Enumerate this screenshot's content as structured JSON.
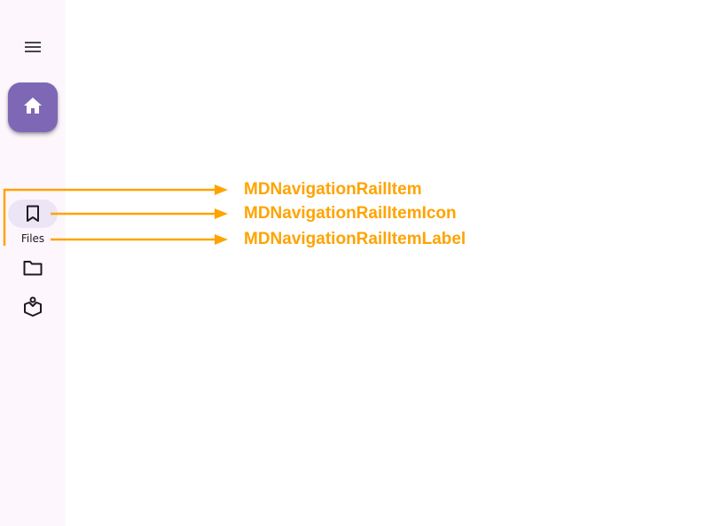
{
  "rail": {
    "menu_icon": "menu-icon",
    "fab_icon": "home-icon",
    "items": [
      {
        "icon": "bookmark-outline-icon",
        "label": "Files",
        "active": true
      },
      {
        "icon": "folder-outline-icon",
        "label": ""
      },
      {
        "icon": "inbox-outline-icon",
        "label": ""
      }
    ]
  },
  "annotations": {
    "item": "MDNavigationRailItem",
    "icon": "MDNavigationRailItemIcon",
    "label": "MDNavigationRailItemLabel"
  },
  "colors": {
    "rail_background": "#fdf7fd",
    "fab": "#7e68b6",
    "indicator": "#ece5f5",
    "annotation": "#ffa300"
  }
}
